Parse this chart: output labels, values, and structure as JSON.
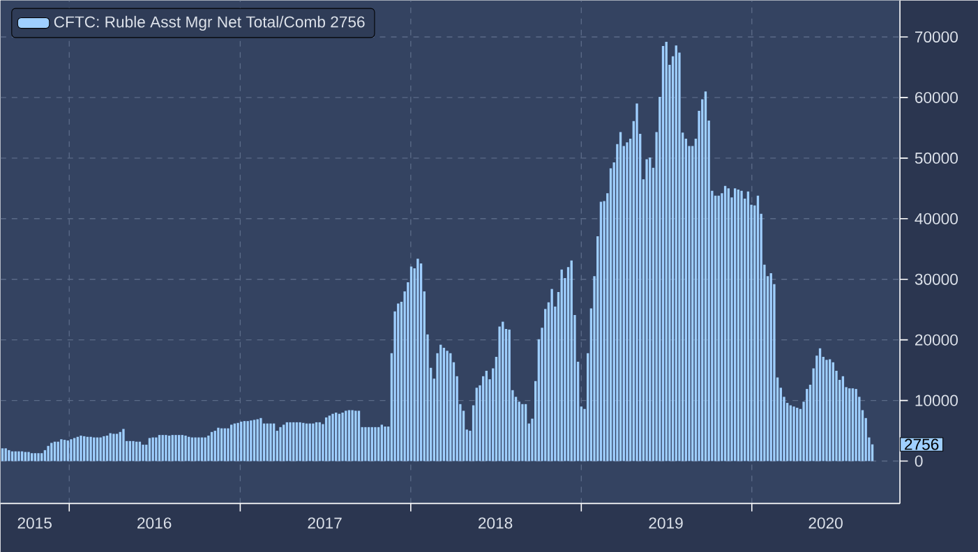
{
  "chart_data": {
    "type": "bar",
    "x": [
      "2015-08-11",
      "2015-08-18",
      "2015-08-25",
      "2015-09-01",
      "2015-09-08",
      "2015-09-15",
      "2015-09-22",
      "2015-09-29",
      "2015-10-06",
      "2015-10-13",
      "2015-10-20",
      "2015-10-27",
      "2015-11-03",
      "2015-11-10",
      "2015-11-17",
      "2015-11-24",
      "2015-12-01",
      "2015-12-08",
      "2015-12-15",
      "2015-12-22",
      "2015-12-29",
      "2016-01-05",
      "2016-01-12",
      "2016-01-19",
      "2016-01-26",
      "2016-02-02",
      "2016-02-09",
      "2016-02-16",
      "2016-02-23",
      "2016-03-01",
      "2016-03-08",
      "2016-03-15",
      "2016-03-22",
      "2016-03-29",
      "2016-04-05",
      "2016-04-12",
      "2016-04-19",
      "2016-04-26",
      "2016-05-03",
      "2016-05-10",
      "2016-05-17",
      "2016-05-24",
      "2016-05-31",
      "2016-06-07",
      "2016-06-14",
      "2016-06-21",
      "2016-06-28",
      "2016-07-05",
      "2016-07-12",
      "2016-07-19",
      "2016-07-26",
      "2016-08-02",
      "2016-08-09",
      "2016-08-16",
      "2016-08-23",
      "2016-08-30",
      "2016-09-06",
      "2016-09-13",
      "2016-09-20",
      "2016-09-27",
      "2016-10-04",
      "2016-10-11",
      "2016-10-18",
      "2016-10-25",
      "2016-11-01",
      "2016-11-08",
      "2016-11-15",
      "2016-11-22",
      "2016-11-29",
      "2016-12-06",
      "2016-12-13",
      "2016-12-20",
      "2016-12-27",
      "2017-01-03",
      "2017-01-10",
      "2017-01-17",
      "2017-01-24",
      "2017-01-31",
      "2017-02-07",
      "2017-02-14",
      "2017-02-21",
      "2017-02-28",
      "2017-03-07",
      "2017-03-14",
      "2017-03-21",
      "2017-03-28",
      "2017-04-04",
      "2017-04-11",
      "2017-04-18",
      "2017-04-25",
      "2017-05-02",
      "2017-05-09",
      "2017-05-16",
      "2017-05-23",
      "2017-05-30",
      "2017-06-06",
      "2017-06-13",
      "2017-06-20",
      "2017-06-27",
      "2017-07-04",
      "2017-07-11",
      "2017-07-18",
      "2017-07-25",
      "2017-08-01",
      "2017-08-08",
      "2017-08-15",
      "2017-08-22",
      "2017-08-29",
      "2017-09-05",
      "2017-09-12",
      "2017-09-19",
      "2017-09-26",
      "2017-10-03",
      "2017-10-10",
      "2017-10-17",
      "2017-10-24",
      "2017-10-31",
      "2017-11-07",
      "2017-11-14",
      "2017-11-21",
      "2017-11-28",
      "2017-12-05",
      "2017-12-12",
      "2017-12-19",
      "2017-12-26",
      "2018-01-02",
      "2018-01-09",
      "2018-01-16",
      "2018-01-23",
      "2018-01-30",
      "2018-02-06",
      "2018-02-13",
      "2018-02-20",
      "2018-02-27",
      "2018-03-06",
      "2018-03-13",
      "2018-03-20",
      "2018-03-27",
      "2018-04-03",
      "2018-04-10",
      "2018-04-17",
      "2018-04-24",
      "2018-05-01",
      "2018-05-08",
      "2018-05-15",
      "2018-05-22",
      "2018-05-29",
      "2018-06-05",
      "2018-06-12",
      "2018-06-19",
      "2018-06-26",
      "2018-07-03",
      "2018-07-10",
      "2018-07-17",
      "2018-07-24",
      "2018-07-31",
      "2018-08-07",
      "2018-08-14",
      "2018-08-21",
      "2018-08-28",
      "2018-09-04",
      "2018-09-11",
      "2018-09-18",
      "2018-09-25",
      "2018-10-02",
      "2018-10-09",
      "2018-10-16",
      "2018-10-23",
      "2018-10-30",
      "2018-11-06",
      "2018-11-13",
      "2018-11-20",
      "2018-11-27",
      "2018-12-04",
      "2018-12-11",
      "2018-12-18",
      "2018-12-25",
      "2019-01-01",
      "2019-01-08",
      "2019-01-15",
      "2019-01-22",
      "2019-01-29",
      "2019-02-05",
      "2019-02-12",
      "2019-02-19",
      "2019-02-26",
      "2019-03-05",
      "2019-03-12",
      "2019-03-19",
      "2019-03-26",
      "2019-04-02",
      "2019-04-09",
      "2019-04-16",
      "2019-04-23",
      "2019-04-30",
      "2019-05-07",
      "2019-05-14",
      "2019-05-21",
      "2019-05-28",
      "2019-06-04",
      "2019-06-11",
      "2019-06-18",
      "2019-06-25",
      "2019-07-02",
      "2019-07-09",
      "2019-07-16",
      "2019-07-23",
      "2019-07-30",
      "2019-08-06",
      "2019-08-13",
      "2019-08-20",
      "2019-08-27",
      "2019-09-03",
      "2019-09-10",
      "2019-09-17",
      "2019-09-24",
      "2019-10-01",
      "2019-10-08",
      "2019-10-15",
      "2019-10-22",
      "2019-10-29",
      "2019-11-05",
      "2019-11-12",
      "2019-11-19",
      "2019-11-26",
      "2019-12-03",
      "2019-12-10",
      "2019-12-17",
      "2019-12-24",
      "2019-12-31",
      "2020-01-07",
      "2020-01-14",
      "2020-01-21",
      "2020-01-28",
      "2020-02-04",
      "2020-02-11",
      "2020-02-18",
      "2020-02-25",
      "2020-03-03",
      "2020-03-10",
      "2020-03-17",
      "2020-03-24",
      "2020-03-31",
      "2020-04-07",
      "2020-04-14",
      "2020-04-21",
      "2020-04-28",
      "2020-05-05",
      "2020-05-12",
      "2020-05-19",
      "2020-05-26",
      "2020-06-02",
      "2020-06-09",
      "2020-06-16",
      "2020-06-23",
      "2020-06-30",
      "2020-07-07",
      "2020-07-14",
      "2020-07-21",
      "2020-07-28",
      "2020-08-04",
      "2020-08-11",
      "2020-08-18",
      "2020-08-25",
      "2020-09-01",
      "2020-09-08",
      "2020-09-15"
    ],
    "series": [
      {
        "name": "CFTC: Ruble Asst Mgr Net Total/Comb  2756",
        "color": "#9fcfff",
        "values": [
          2100,
          2100,
          1800,
          1600,
          1600,
          1600,
          1600,
          1500,
          1500,
          1300,
          1300,
          1300,
          1300,
          1800,
          2500,
          3000,
          3200,
          3200,
          3600,
          3500,
          3400,
          3600,
          3800,
          4000,
          4200,
          4100,
          4000,
          4000,
          3900,
          3900,
          3900,
          4100,
          4200,
          4600,
          4500,
          4500,
          4800,
          5300,
          3300,
          3300,
          3300,
          3200,
          3200,
          2700,
          2700,
          3800,
          3900,
          3900,
          4300,
          4300,
          4300,
          4200,
          4300,
          4300,
          4300,
          4300,
          4200,
          4000,
          3900,
          3900,
          3900,
          3900,
          3900,
          4200,
          4800,
          5000,
          5500,
          5400,
          5400,
          5400,
          6000,
          6200,
          6300,
          6500,
          6600,
          6600,
          6700,
          6800,
          6900,
          7100,
          6200,
          6200,
          6200,
          6200,
          5000,
          5600,
          6000,
          6400,
          6400,
          6400,
          6400,
          6400,
          6300,
          6200,
          6200,
          6200,
          6400,
          6400,
          6100,
          7200,
          7500,
          7800,
          8000,
          7800,
          8000,
          8300,
          8400,
          8400,
          8300,
          8300,
          5600,
          5600,
          5600,
          5600,
          5600,
          5600,
          6000,
          5700,
          5700,
          17800,
          24700,
          26000,
          26300,
          28000,
          29500,
          32100,
          31800,
          33400,
          32600,
          28000,
          20900,
          15400,
          13600,
          17800,
          19200,
          18700,
          18200,
          17800,
          16300,
          14000,
          9400,
          8300,
          5200,
          5000,
          9200,
          12100,
          12500,
          14000,
          14900,
          13500,
          15300,
          17200,
          22200,
          23000,
          21800,
          21700,
          11700,
          10600,
          9800,
          9400,
          9400,
          6200,
          7000,
          13200,
          20100,
          22000,
          25100,
          26200,
          28400,
          25500,
          27900,
          31600,
          30200,
          32000,
          33100,
          24100,
          16400,
          9000,
          8600,
          17800,
          25200,
          30500,
          37100,
          42800,
          42900,
          44200,
          48300,
          49300,
          52300,
          54300,
          52000,
          52600,
          53200,
          56100,
          59000,
          54000,
          46500,
          49800,
          50100,
          48400,
          54300,
          60100,
          68500,
          69200,
          65400,
          66800,
          68600,
          67400,
          54200,
          53200,
          52000,
          52000,
          53200,
          57800,
          59700,
          61000,
          56200,
          44600,
          43800,
          43800,
          44200,
          45400,
          45000,
          43500,
          45000,
          44800,
          44600,
          43300,
          44500,
          42300,
          42200,
          43800,
          40800,
          32400,
          30500,
          31000,
          29200,
          13800,
          12100,
          10600,
          9600,
          9200,
          9000,
          8800,
          8600,
          9800,
          11900,
          12600,
          15300,
          17400,
          18600,
          17200,
          16700,
          16800,
          16300,
          14900,
          13400,
          14000,
          12200,
          12000,
          12000,
          11900,
          10600,
          8400,
          7100,
          3900,
          2756
        ]
      }
    ],
    "xlim": [
      "2015-08-07",
      "2020-11-13"
    ],
    "xticks": [
      {
        "value": "2016-01-01",
        "label": null
      },
      {
        "value": "2017-01-01",
        "label": null
      },
      {
        "value": "2018-01-01",
        "label": null
      },
      {
        "value": "2019-01-01",
        "label": null
      },
      {
        "value": "2020-01-01",
        "label": null
      },
      {
        "value": "2015-10-19",
        "label": "2015"
      },
      {
        "value": "2016-07-01",
        "label": "2016"
      },
      {
        "value": "2017-07-01",
        "label": "2017"
      },
      {
        "value": "2018-07-01",
        "label": "2018"
      },
      {
        "value": "2019-07-01",
        "label": "2019"
      },
      {
        "value": "2020-06-07",
        "label": "2020"
      }
    ],
    "ylim": [
      -7000,
      76000
    ],
    "yticks": [
      0,
      10000,
      20000,
      30000,
      40000,
      50000,
      60000,
      70000
    ],
    "annotations": [
      {
        "text": "2756",
        "y": 2756
      }
    ],
    "grid": true,
    "legend": "top left"
  }
}
